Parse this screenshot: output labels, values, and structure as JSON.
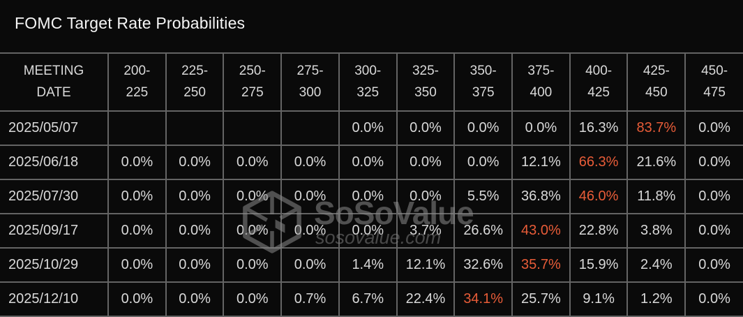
{
  "title": "FOMC Target Rate Probabilities",
  "colors": {
    "background": "#0a0a0a",
    "title_text": "#f5f5f5",
    "table_text": "#d9d9d9",
    "highlight_orange": "#e85c38",
    "grid_border": "#646464",
    "watermark_gray": "#4d4d4d"
  },
  "watermark": {
    "name": "SoSoValue",
    "domain": "sosovalue.com",
    "logo": "sosovalue-cube-logo"
  },
  "chart_data": {
    "type": "table",
    "title": "FOMC Target Rate Probabilities",
    "units": "%",
    "meeting_date_header": "MEETING\nDATE",
    "rate_range_headers": [
      "200-\n225",
      "225-\n250",
      "250-\n275",
      "275-\n300",
      "300-\n325",
      "325-\n350",
      "350-\n375",
      "375-\n400",
      "400-\n425",
      "425-\n450",
      "450-\n475"
    ],
    "rows": [
      {
        "date": "2025/05/07",
        "values": [
          "",
          "",
          "",
          "",
          "0.0%",
          "0.0%",
          "0.0%",
          "0.0%",
          "16.3%",
          "83.7%",
          "0.0%"
        ],
        "highlight_index": 9
      },
      {
        "date": "2025/06/18",
        "values": [
          "0.0%",
          "0.0%",
          "0.0%",
          "0.0%",
          "0.0%",
          "0.0%",
          "0.0%",
          "12.1%",
          "66.3%",
          "21.6%",
          "0.0%"
        ],
        "highlight_index": 8
      },
      {
        "date": "2025/07/30",
        "values": [
          "0.0%",
          "0.0%",
          "0.0%",
          "0.0%",
          "0.0%",
          "0.0%",
          "5.5%",
          "36.8%",
          "46.0%",
          "11.8%",
          "0.0%"
        ],
        "highlight_index": 8
      },
      {
        "date": "2025/09/17",
        "values": [
          "0.0%",
          "0.0%",
          "0.0%",
          "0.0%",
          "0.0%",
          "3.7%",
          "26.6%",
          "43.0%",
          "22.8%",
          "3.8%",
          "0.0%"
        ],
        "highlight_index": 7
      },
      {
        "date": "2025/10/29",
        "values": [
          "0.0%",
          "0.0%",
          "0.0%",
          "0.0%",
          "1.4%",
          "12.1%",
          "32.6%",
          "35.7%",
          "15.9%",
          "2.4%",
          "0.0%"
        ],
        "highlight_index": 7
      },
      {
        "date": "2025/12/10",
        "values": [
          "0.0%",
          "0.0%",
          "0.0%",
          "0.7%",
          "6.7%",
          "22.4%",
          "34.1%",
          "25.7%",
          "9.1%",
          "1.2%",
          "0.0%"
        ],
        "highlight_index": 6
      }
    ]
  }
}
